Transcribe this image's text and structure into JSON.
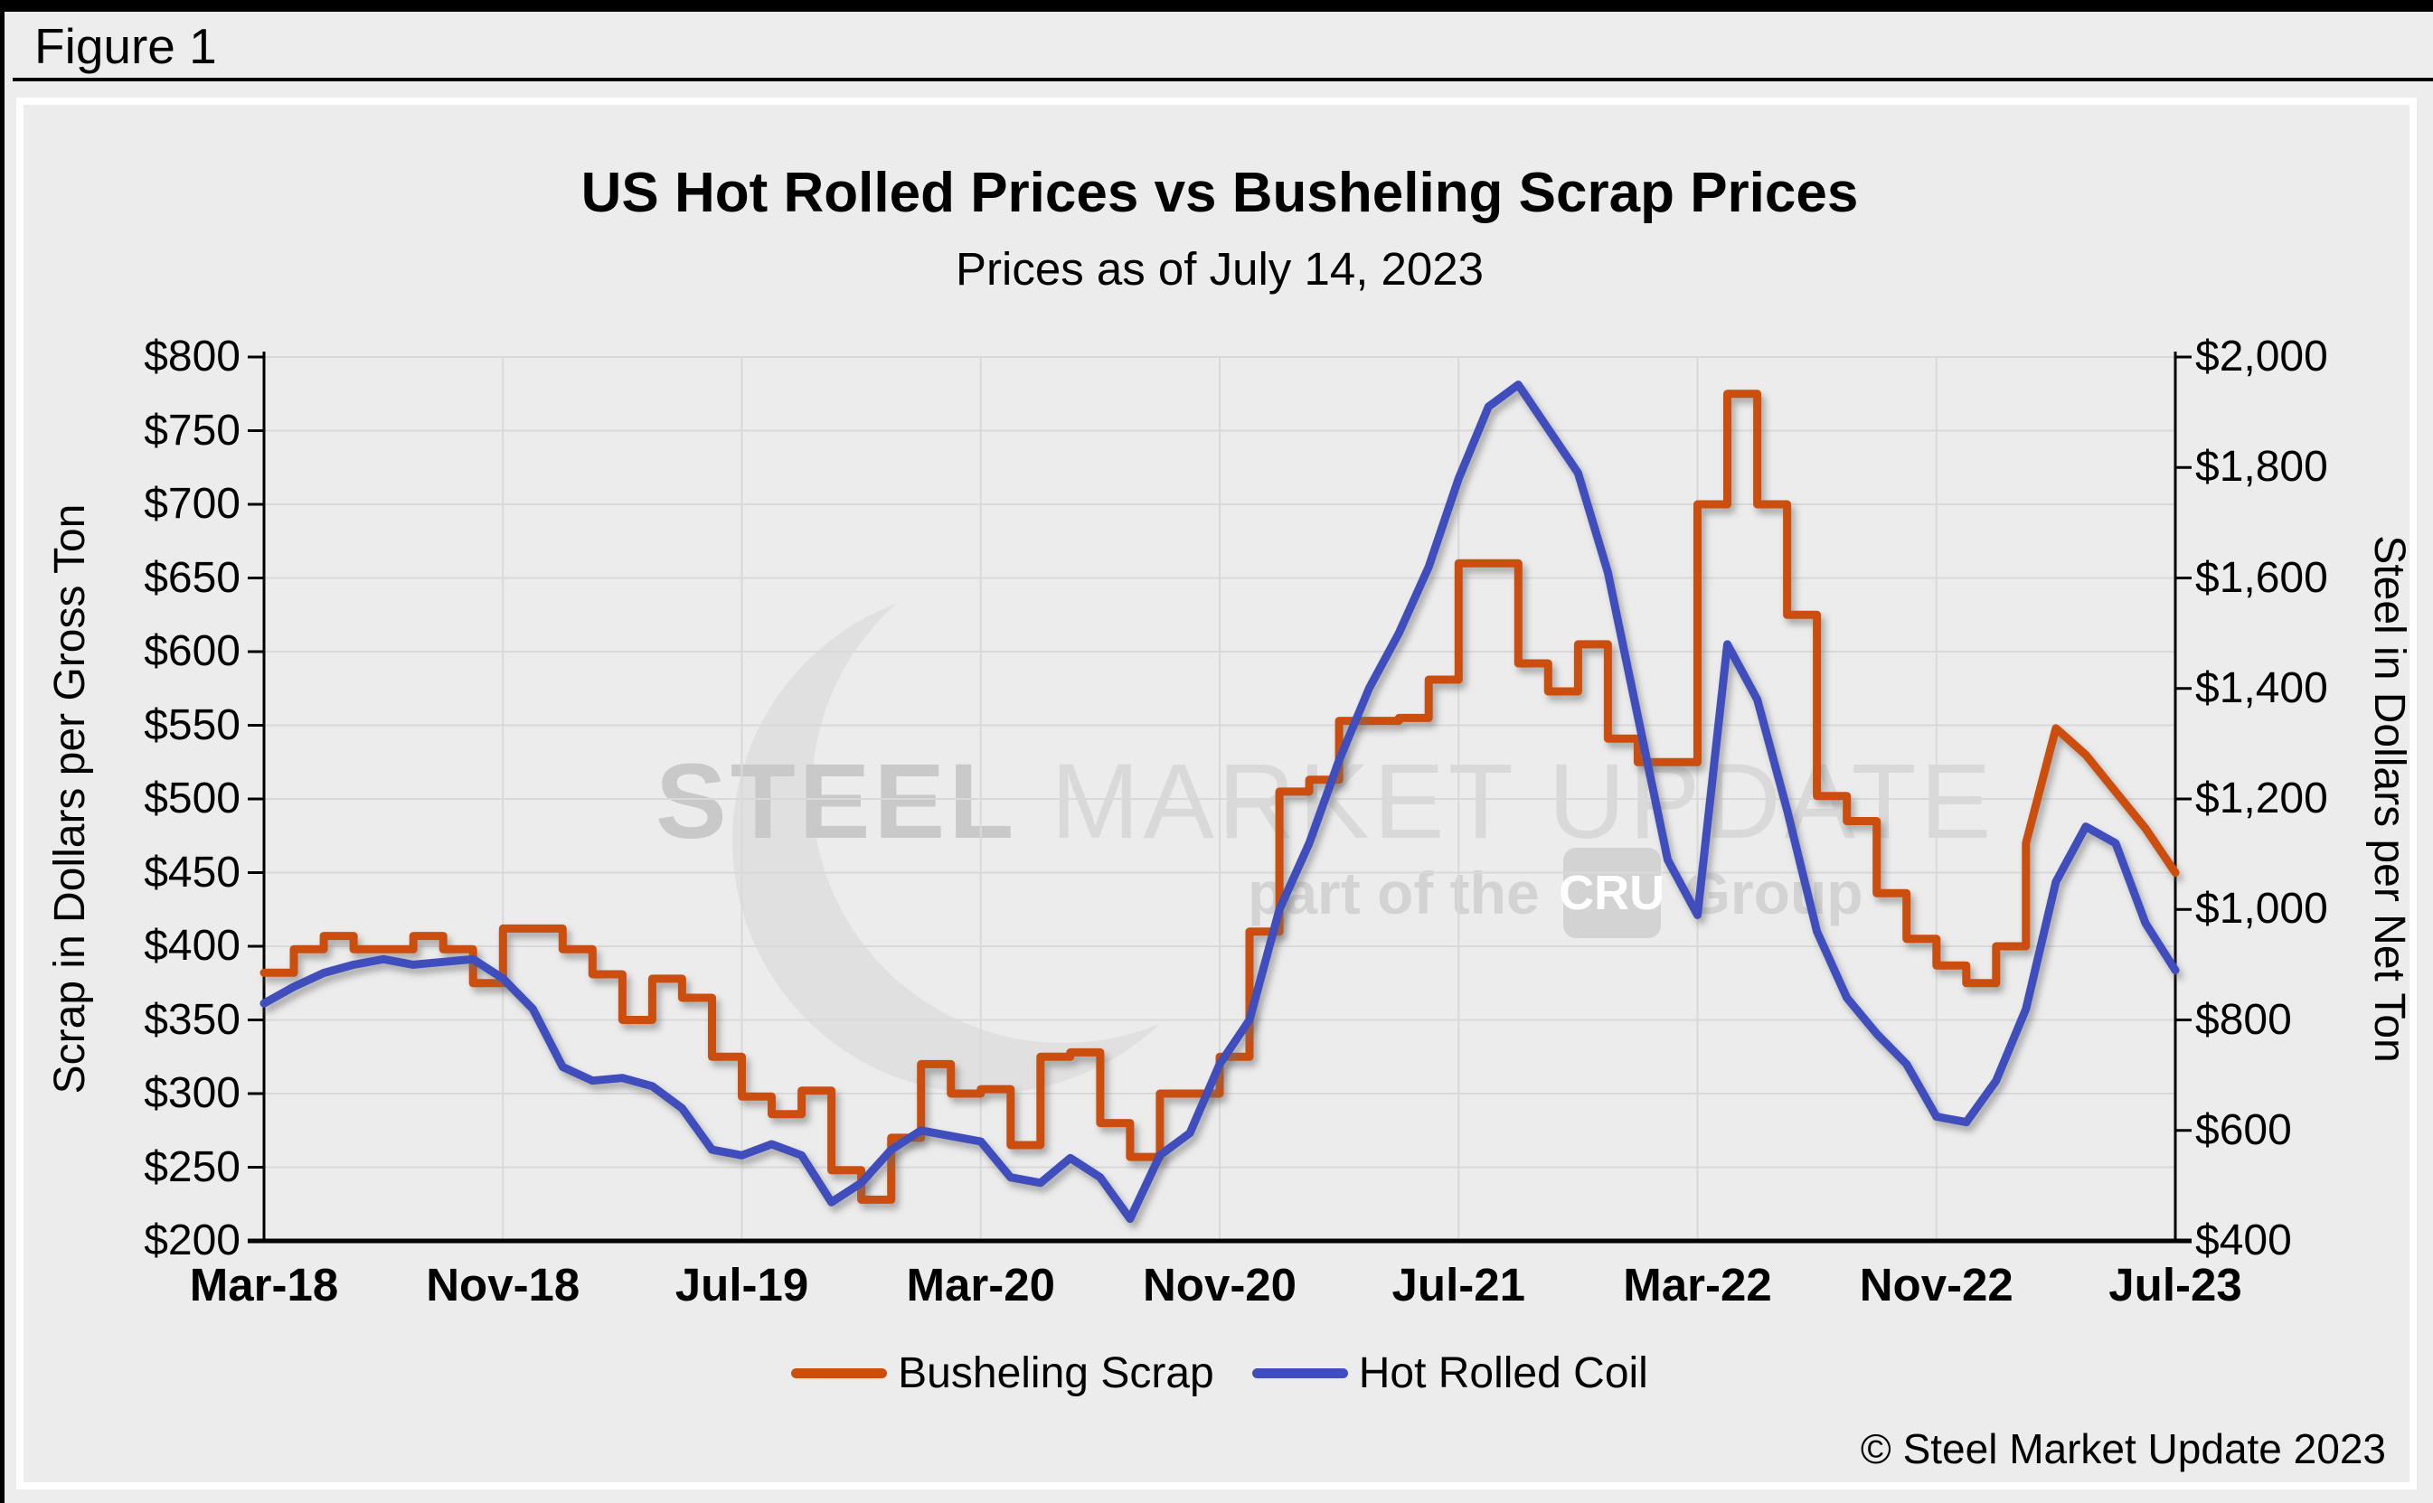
{
  "figure_label": "Figure 1",
  "copyright": "© Steel Market Update 2023",
  "watermark": {
    "brand_bold": "STEEL",
    "brand_rest": " MARKET UPDATE",
    "tagline_prefix": "part of the",
    "cru": "CRU",
    "tagline_suffix": "Group"
  },
  "chart_data": {
    "type": "line",
    "title": "US Hot Rolled Prices vs Busheling Scrap Prices",
    "subtitle": "Prices as of July 14, 2023",
    "grid": true,
    "legend_position": "bottom",
    "x": [
      "Mar-18",
      "Apr-18",
      "May-18",
      "Jun-18",
      "Jul-18",
      "Aug-18",
      "Sep-18",
      "Oct-18",
      "Nov-18",
      "Dec-18",
      "Jan-19",
      "Feb-19",
      "Mar-19",
      "Apr-19",
      "May-19",
      "Jun-19",
      "Jul-19",
      "Aug-19",
      "Sep-19",
      "Oct-19",
      "Nov-19",
      "Dec-19",
      "Jan-20",
      "Feb-20",
      "Mar-20",
      "Apr-20",
      "May-20",
      "Jun-20",
      "Jul-20",
      "Aug-20",
      "Sep-20",
      "Oct-20",
      "Nov-20",
      "Dec-20",
      "Jan-21",
      "Feb-21",
      "Mar-21",
      "Apr-21",
      "May-21",
      "Jun-21",
      "Jul-21",
      "Aug-21",
      "Sep-21",
      "Oct-21",
      "Nov-21",
      "Dec-21",
      "Jan-22",
      "Feb-22",
      "Mar-22",
      "Apr-22",
      "May-22",
      "Jun-22",
      "Jul-22",
      "Aug-22",
      "Sep-22",
      "Oct-22",
      "Nov-22",
      "Dec-22",
      "Jan-23",
      "Feb-23",
      "Mar-23",
      "Apr-23",
      "May-23",
      "Jun-23",
      "Jul-23"
    ],
    "x_tick_labels": [
      "Mar-18",
      "Nov-18",
      "Jul-19",
      "Mar-20",
      "Nov-20",
      "Jul-21",
      "Mar-22",
      "Nov-22",
      "Jul-23"
    ],
    "left_axis": {
      "label": "Scrap in Dollars per Gross Ton",
      "min": 200,
      "max": 800,
      "tick_step": 50,
      "tick_labels": [
        "$800",
        "$750",
        "$700",
        "$650",
        "$600",
        "$550",
        "$500",
        "$450",
        "$400",
        "$350",
        "$300",
        "$250",
        "$200"
      ]
    },
    "right_axis": {
      "label": "Steel in Dollars per Net Ton",
      "min": 400,
      "max": 2000,
      "tick_step": 200,
      "tick_labels": [
        "$2,000",
        "$1,800",
        "$1,600",
        "$1,400",
        "$1,200",
        "$1,000",
        "$800",
        "$600",
        "$400"
      ]
    },
    "series": [
      {
        "name": "Busheling Scrap",
        "axis": "left",
        "units": "USD per gross ton",
        "color": "#cc4e0e",
        "render": "step",
        "step_until_index": 59,
        "values": [
          382,
          398,
          407,
          398,
          398,
          407,
          398,
          375,
          412,
          412,
          398,
          381,
          350,
          378,
          365,
          325,
          298,
          286,
          302,
          248,
          228,
          270,
          320,
          300,
          303,
          265,
          325,
          328,
          280,
          257,
          300,
          300,
          325,
          410,
          505,
          513,
          553,
          553,
          555,
          581,
          660,
          660,
          592,
          573,
          605,
          541,
          525,
          525,
          700,
          775,
          700,
          625,
          502,
          485,
          436,
          405,
          387,
          375,
          400,
          470,
          548,
          530,
          505,
          480,
          450
        ]
      },
      {
        "name": "Hot Rolled Coil",
        "axis": "right",
        "units": "USD per net ton",
        "color": "#3f4ebc",
        "render": "line",
        "values": [
          830,
          860,
          885,
          900,
          910,
          900,
          905,
          910,
          875,
          820,
          715,
          690,
          695,
          680,
          640,
          565,
          555,
          575,
          555,
          470,
          505,
          565,
          600,
          590,
          580,
          515,
          505,
          550,
          515,
          440,
          555,
          595,
          720,
          800,
          1000,
          1120,
          1270,
          1400,
          1500,
          1620,
          1780,
          1910,
          1950,
          1870,
          1790,
          1610,
          1350,
          1090,
          990,
          1480,
          1380,
          1180,
          960,
          840,
          775,
          720,
          625,
          615,
          690,
          820,
          1050,
          1150,
          1120,
          975,
          890
        ]
      }
    ],
    "legend": [
      "Busheling Scrap",
      "Hot Rolled Coil"
    ],
    "plot_colors": {
      "gridline": "#d9d9d9",
      "axis": "#000000",
      "panel_bg": "#ececec"
    }
  }
}
